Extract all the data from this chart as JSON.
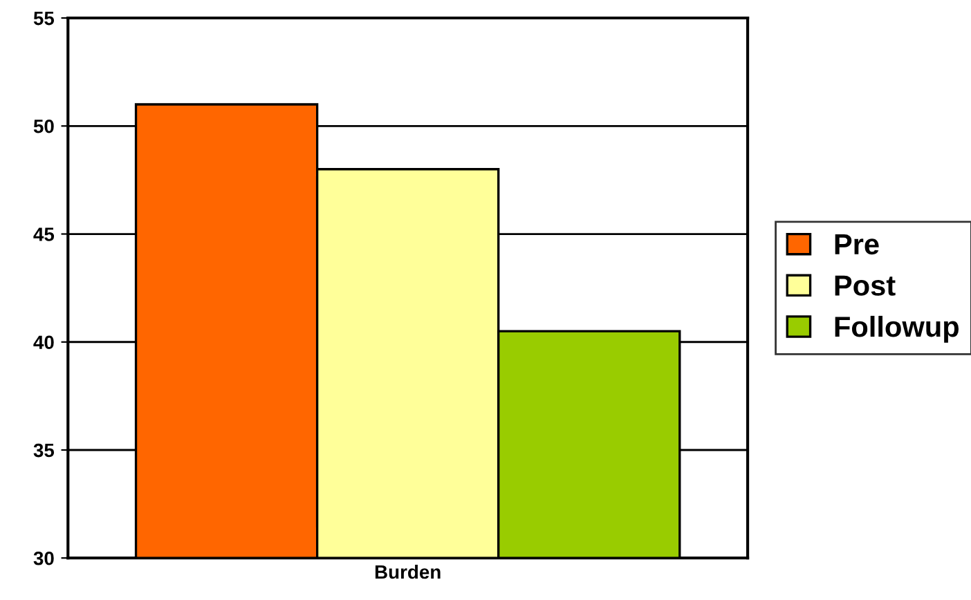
{
  "chart_data": {
    "type": "bar",
    "categories": [
      "Burden"
    ],
    "series": [
      {
        "name": "Pre",
        "color": "#ff6600",
        "values": [
          51
        ]
      },
      {
        "name": "Post",
        "color": "#ffff99",
        "values": [
          48
        ]
      },
      {
        "name": "Followup",
        "color": "#99cc00",
        "values": [
          40.5
        ]
      }
    ],
    "ylim": [
      30,
      55
    ],
    "yticks": [
      30,
      35,
      40,
      45,
      50,
      55
    ],
    "grid": "y",
    "legend": "right"
  }
}
